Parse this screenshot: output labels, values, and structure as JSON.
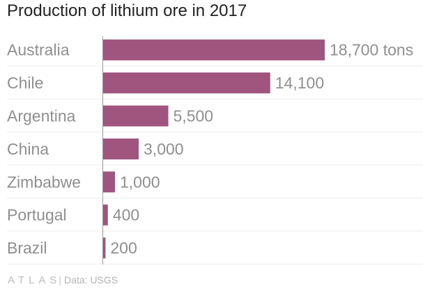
{
  "chart_data": {
    "type": "bar",
    "orientation": "horizontal",
    "title": "Production of lithium ore in 2017",
    "categories": [
      "Australia",
      "Chile",
      "Argentina",
      "China",
      "Zimbabwe",
      "Portugal",
      "Brazil"
    ],
    "values": [
      18700,
      14100,
      5500,
      3000,
      1000,
      400,
      200
    ],
    "value_labels": [
      "18,700 tons",
      "14,100",
      "5,500",
      "3,000",
      "1,000",
      "400",
      "200"
    ],
    "xlim": [
      0,
      18700
    ],
    "bar_color": "#a0557f",
    "grid": true,
    "legend": "none"
  },
  "footer": {
    "logo": "ATLAS",
    "separator": "|",
    "source_prefix": "Data: ",
    "source": "USGS"
  }
}
